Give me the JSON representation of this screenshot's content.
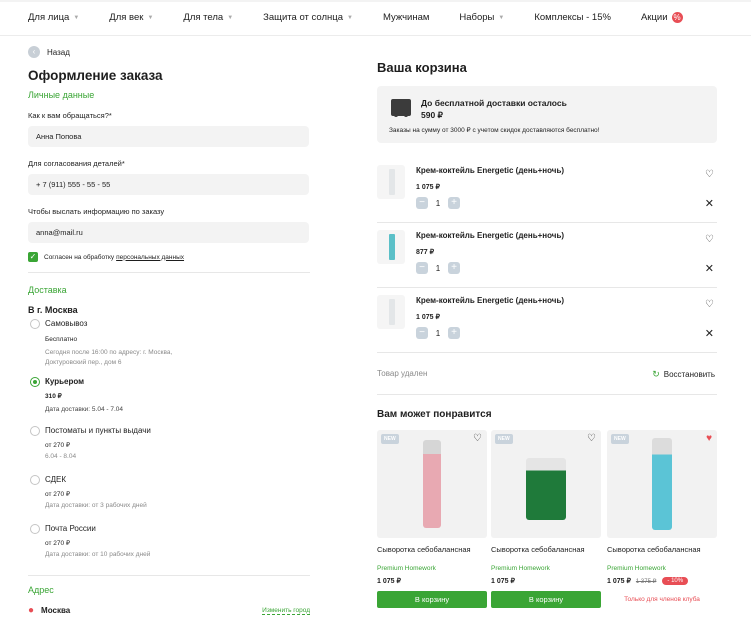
{
  "nav": {
    "items": [
      {
        "label": "Для лица",
        "chevron": true
      },
      {
        "label": "Для век",
        "chevron": true
      },
      {
        "label": "Для тела",
        "chevron": true
      },
      {
        "label": "Защита от солнца",
        "chevron": true
      },
      {
        "label": "Мужчинам",
        "chevron": false
      },
      {
        "label": "Наборы",
        "chevron": true
      },
      {
        "label": "Комплексы - 15%",
        "chevron": false
      },
      {
        "label": "Акции",
        "chevron": false,
        "badge": "%"
      }
    ]
  },
  "checkout": {
    "back_label": "Назад",
    "title": "Оформление заказа",
    "personal_heading": "Личные данные",
    "name_label": "Как к вам обращаться?*",
    "name_value": "Анна Попова",
    "phone_label": "Для согласования деталей*",
    "phone_value": "+ 7 (911) 555 - 55 - 55",
    "email_label": "Чтобы выслать информацию по заказу",
    "email_value": "anna@mail.ru",
    "consent_text": "Согласен на обработку",
    "consent_link": "персональных данных",
    "delivery_heading": "Доставка",
    "city": "В г. Москва",
    "options": [
      {
        "title": "Самовывоз",
        "sub": "Бесплатно",
        "detail": "Сегодня после 16:00 по адресу: г. Москва, Доктуровский пер., дом 6",
        "selected": false
      },
      {
        "title": "Курьером",
        "sub": "310 ₽",
        "detail": "Дата доставки: 5.04 - 7.04",
        "selected": true
      },
      {
        "title": "Постоматы и пункты выдачи",
        "sub": "от 270 ₽",
        "detail": "6.04 - 8.04",
        "selected": false
      },
      {
        "title": "СДЕК",
        "sub": "от 270 ₽",
        "detail": "Дата доставки: от 3 рабочих дней",
        "selected": false
      },
      {
        "title": "Почта России",
        "sub": "от 270 ₽",
        "detail": "Дата доставки: от 10 рабочих дней",
        "selected": false
      }
    ],
    "address_heading": "Адрес",
    "address_city": "Москва",
    "change_city": "Изменить город"
  },
  "cart": {
    "title": "Ваша корзина",
    "promo_title": "До бесплатной доставки осталось 590 ₽",
    "promo_sub": "Заказы на сумму от  3000 ₽ с учетом скидок доставляются бесплатно!",
    "items": [
      {
        "name": "Крем-коктейль Energetic (день+ночь)",
        "price": "1 075 ₽",
        "qty": "1",
        "color": "#e3e6e8"
      },
      {
        "name": "Крем-коктейль Energetic (день+ночь)",
        "price": "877 ₽",
        "qty": "1",
        "color": "#5bc0c8"
      },
      {
        "name": "Крем-коктейль Energetic (день+ночь)",
        "price": "1 075 ₽",
        "qty": "1",
        "color": "#e3e6e8"
      }
    ],
    "removed_text": "Товар удален",
    "restore_label": "Восстановить"
  },
  "recommend": {
    "title": "Вам может понравится",
    "products": [
      {
        "badge": "NEW",
        "name": "Сыворотка себобалансная",
        "brand": "Premium Homework",
        "price": "1 075 ₽",
        "old_price": "",
        "discount": "",
        "button": "В корзину",
        "note": "",
        "liked": false,
        "bottle_color": "#e8a9b2"
      },
      {
        "badge": "NEW",
        "name": "Сыворотка себобалансная",
        "brand": "Premium Homework",
        "price": "1 075 ₽",
        "old_price": "",
        "discount": "",
        "button": "В корзину",
        "note": "",
        "liked": false,
        "bottle_color": "#1f7a3a"
      },
      {
        "badge": "NEW",
        "name": "Сыворотка себобалансная",
        "brand": "Premium Homework",
        "price": "1 075 ₽",
        "old_price": "1 375 ₽",
        "discount": "- 10%",
        "button": "",
        "note": "Только для членов клуба",
        "liked": true,
        "bottle_color": "#5bc4d6"
      }
    ]
  }
}
